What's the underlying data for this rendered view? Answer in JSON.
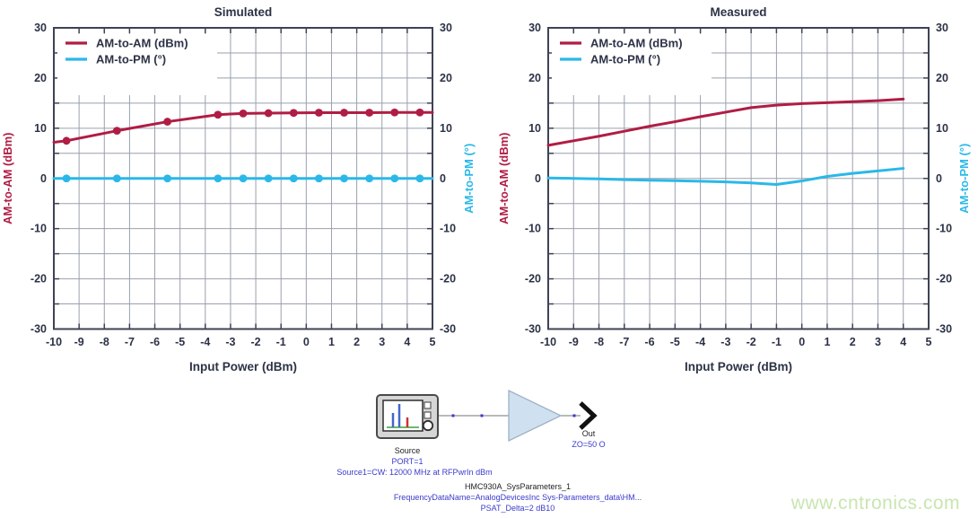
{
  "colors": {
    "am_to_am": "#b01d44",
    "am_to_pm": "#2bb8e8",
    "axis_text": "#2c3246",
    "plot_border": "#3d4355",
    "gridline": "#99a0ad",
    "schematic_blue": "#3a3acc",
    "schematic_dark": "#222222",
    "amplifier_fill": "#cfe1f1",
    "amplifier_stroke": "#9fb0c4",
    "watermark_green": "#c8e6b0"
  },
  "watermark": {
    "text": "www.cntronics.com"
  },
  "chart_data": [
    {
      "type": "line",
      "title": "Simulated",
      "xlabel": "Input Power (dBm)",
      "ylabel_left": "AM-to-AM (dBm)",
      "ylabel_right": "AM-to-PM (°)",
      "xlim": [
        -10,
        5
      ],
      "ylim": [
        -30,
        30
      ],
      "x_ticks": [
        -10,
        -9,
        -8,
        -7,
        -6,
        -5,
        -4,
        -3,
        -2,
        -1,
        0,
        1,
        2,
        3,
        4,
        5
      ],
      "y_ticks": [
        30,
        20,
        10,
        0,
        -10,
        -20,
        -30
      ],
      "grid": {
        "x_step": 1,
        "y_step": 5,
        "on": true
      },
      "legend_position": "top-left",
      "legend": [
        "AM-to-AM (dBm)",
        "AM-to-PM (°)"
      ],
      "series": [
        {
          "name": "AM-to-AM (dBm)",
          "color": "#b01d44",
          "marker": true,
          "x": [
            -10,
            -9.5,
            -7.5,
            -5.5,
            -3.5,
            -2.5,
            -1.5,
            -0.5,
            0.5,
            1.5,
            2.5,
            3.5,
            4.5,
            5
          ],
          "y": [
            7.2,
            7.5,
            9.5,
            11.3,
            12.7,
            12.95,
            13.0,
            13.05,
            13.1,
            13.1,
            13.1,
            13.15,
            13.15,
            13.15
          ],
          "marker_x": [
            -9.5,
            -7.5,
            -5.5,
            -3.5,
            -2.5,
            -1.5,
            -0.5,
            0.5,
            1.5,
            2.5,
            3.5,
            4.5
          ],
          "marker_y": [
            7.5,
            9.5,
            11.3,
            12.7,
            12.95,
            13.0,
            13.05,
            13.1,
            13.1,
            13.1,
            13.15,
            13.15
          ]
        },
        {
          "name": "AM-to-PM (°)",
          "color": "#2bb8e8",
          "marker": true,
          "x": [
            -10,
            5
          ],
          "y": [
            0,
            0
          ],
          "marker_x": [
            -9.5,
            -7.5,
            -5.5,
            -3.5,
            -2.5,
            -1.5,
            -0.5,
            0.5,
            1.5,
            2.5,
            3.5,
            4.5
          ],
          "marker_y": [
            0,
            0,
            0,
            0,
            0,
            0,
            0,
            0,
            0,
            0,
            0,
            0
          ]
        }
      ]
    },
    {
      "type": "line",
      "title": "Measured",
      "xlabel": "Input Power (dBm)",
      "ylabel_left": "AM-to-AM (dBm)",
      "ylabel_right": "AM-to-PM (°)",
      "xlim": [
        -10,
        5
      ],
      "ylim": [
        -30,
        30
      ],
      "x_ticks": [
        -10,
        -9,
        -8,
        -7,
        -6,
        -5,
        -4,
        -3,
        -2,
        -1,
        0,
        1,
        2,
        3,
        4,
        5
      ],
      "y_ticks": [
        30,
        20,
        10,
        0,
        -10,
        -20,
        -30
      ],
      "grid": {
        "x_step": 1,
        "y_step": 5,
        "on": true
      },
      "legend_position": "top-left",
      "legend": [
        "AM-to-AM (dBm)",
        "AM-to-PM (°)"
      ],
      "series": [
        {
          "name": "AM-to-AM (dBm)",
          "color": "#b01d44",
          "marker": false,
          "x": [
            -10,
            -9,
            -8,
            -7,
            -6,
            -5,
            -4,
            -3,
            -2,
            -1,
            0,
            1,
            2,
            3,
            4
          ],
          "y": [
            6.6,
            7.5,
            8.4,
            9.4,
            10.4,
            11.3,
            12.3,
            13.2,
            14.1,
            14.6,
            14.9,
            15.1,
            15.3,
            15.5,
            15.8
          ]
        },
        {
          "name": "AM-to-PM (°)",
          "color": "#2bb8e8",
          "marker": false,
          "x": [
            -10,
            -9,
            -8,
            -7,
            -6,
            -5,
            -4,
            -3,
            -2,
            -1,
            0,
            1,
            2,
            3,
            4
          ],
          "y": [
            0.1,
            0.0,
            -0.1,
            -0.25,
            -0.35,
            -0.45,
            -0.55,
            -0.7,
            -0.9,
            -1.2,
            -0.5,
            0.4,
            1.0,
            1.5,
            2.0
          ]
        }
      ]
    }
  ],
  "diagram": {
    "source_label": "Source",
    "source_port": "PORT=1",
    "source_param": "Source1=CW: 12000 MHz at RFPwrIn dBm",
    "out_label": "Out",
    "out_impedance": "ZO=50 O",
    "component_name": "HMC930A_SysParameters_1",
    "component_param1": "FrequencyDataName=AnalogDevicesInc Sys-Parameters_data\\HM...",
    "component_param2": "PSAT_Delta=2 dB10",
    "icons": [
      "signal-source-icon",
      "amplifier-icon",
      "out-arrow-icon"
    ]
  }
}
